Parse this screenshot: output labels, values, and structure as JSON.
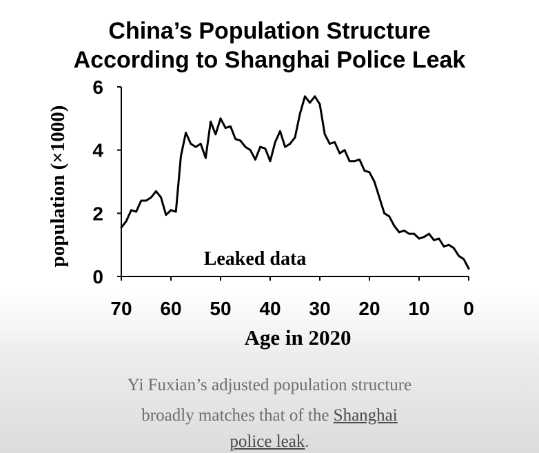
{
  "chart_data": {
    "type": "line",
    "title_lines": [
      "China’s Population Structure",
      "According to Shanghai Police Leak"
    ],
    "xlabel": "Age in 2020",
    "ylabel": "population (×1000)",
    "xlim": [
      70,
      0
    ],
    "ylim": [
      0,
      6
    ],
    "x_ticks": [
      "70",
      "60",
      "50",
      "40",
      "30",
      "20",
      "10",
      "0"
    ],
    "y_ticks": [
      "0",
      "2",
      "4",
      "6"
    ],
    "annotation": "Leaked data",
    "grid": false,
    "series": [
      {
        "color": "#000000",
        "x": [
          70,
          69,
          68,
          67,
          66,
          65,
          64,
          63,
          62,
          61,
          60,
          59,
          58,
          57,
          56,
          55,
          54,
          53,
          52,
          51,
          50,
          49,
          48,
          47,
          46,
          45,
          44,
          43,
          42,
          41,
          40,
          39,
          38,
          37,
          36,
          35,
          34,
          33,
          32,
          31,
          30,
          29,
          28,
          27,
          26,
          25,
          24,
          23,
          22,
          21,
          20,
          19,
          18,
          17,
          16,
          15,
          14,
          13,
          12,
          11,
          10,
          9,
          8,
          7,
          6,
          5,
          4,
          3,
          2,
          1,
          0
        ],
        "y": [
          1.55,
          1.75,
          2.1,
          2.05,
          2.4,
          2.4,
          2.5,
          2.7,
          2.5,
          1.95,
          2.1,
          2.05,
          3.8,
          4.55,
          4.2,
          4.1,
          4.2,
          3.75,
          4.9,
          4.5,
          5.0,
          4.7,
          4.75,
          4.35,
          4.3,
          4.1,
          4.0,
          3.7,
          4.1,
          4.05,
          3.65,
          4.25,
          4.6,
          4.1,
          4.2,
          4.4,
          5.15,
          5.7,
          5.5,
          5.7,
          5.45,
          4.5,
          4.2,
          4.25,
          3.9,
          4.0,
          3.65,
          3.65,
          3.7,
          3.35,
          3.3,
          3.0,
          2.5,
          2.0,
          1.9,
          1.6,
          1.4,
          1.45,
          1.35,
          1.35,
          1.2,
          1.25,
          1.35,
          1.15,
          1.2,
          0.95,
          1.0,
          0.9,
          0.65,
          0.55,
          0.25
        ]
      }
    ]
  },
  "caption": {
    "line1": "Yi Fuxian’s adjusted population structure",
    "line2_prefix": "broadly matches that of the ",
    "line2_link": "Shanghai",
    "line3_link": "police leak",
    "line3_suffix": "."
  }
}
